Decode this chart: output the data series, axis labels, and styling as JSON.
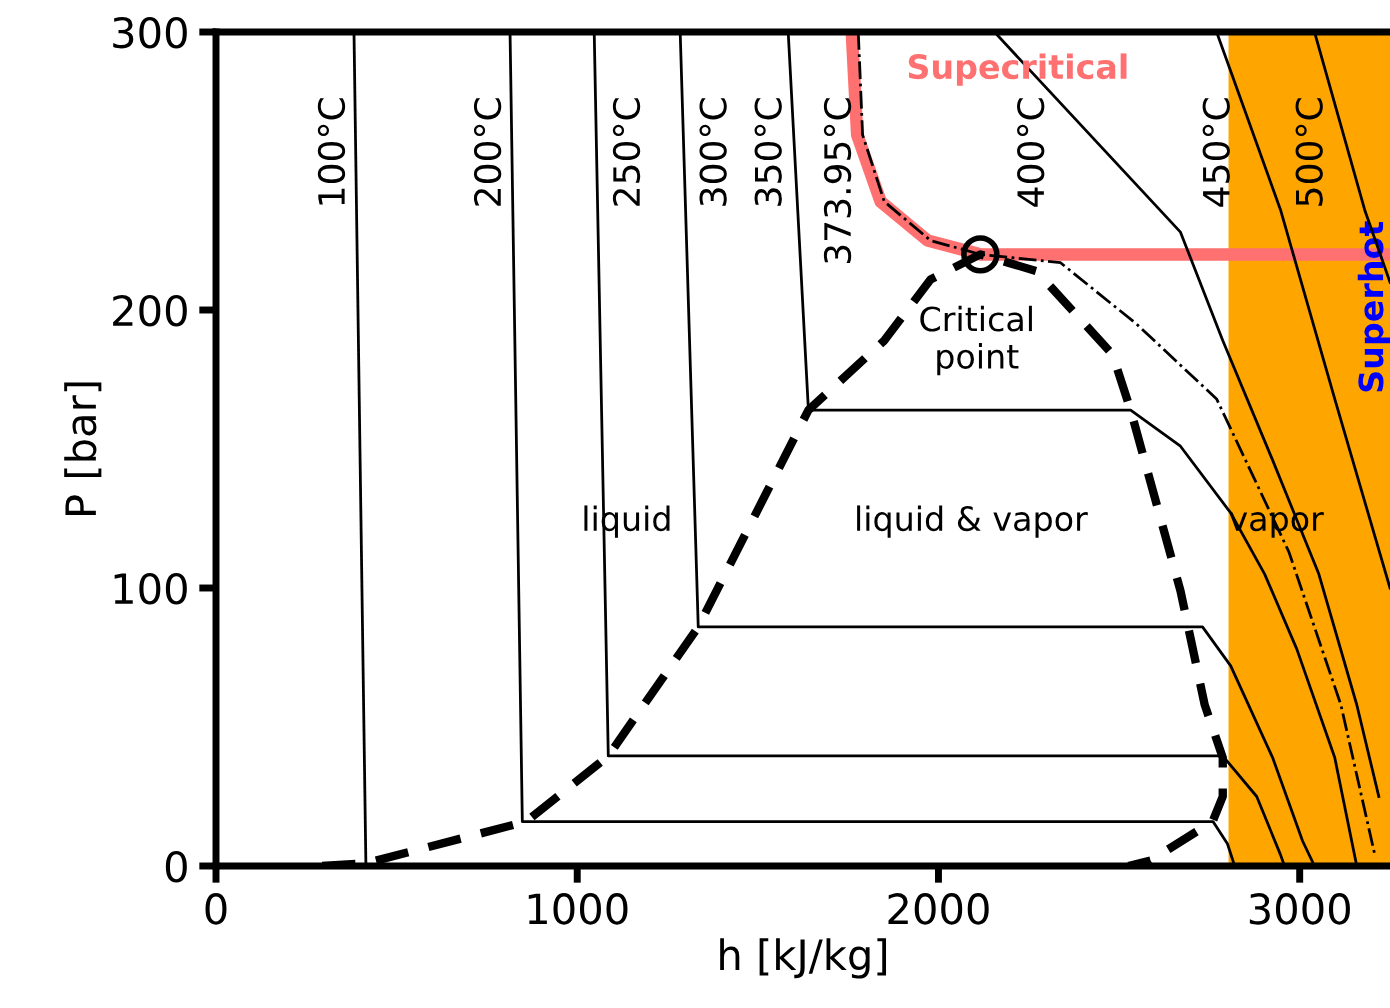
{
  "chart_data": {
    "type": "line",
    "xlabel": "h [kJ/kg]",
    "ylabel": "P [bar]",
    "xlim": [
      0,
      3250
    ],
    "ylim": [
      0,
      300
    ],
    "xticks": [
      0,
      1000,
      2000,
      3000
    ],
    "yticks": [
      0,
      100,
      200,
      300
    ],
    "grid": false,
    "legend": false,
    "series": [
      {
        "name": "100°C",
        "color": "#000000",
        "line_style": "solid",
        "x": [
          382,
          415
        ],
        "values": [
          300,
          0
        ]
      },
      {
        "name": "200°C",
        "color": "#000000",
        "line_style": "solid",
        "x": [
          814,
          848,
          2760,
          2800,
          2820
        ],
        "values": [
          300,
          16,
          16,
          8,
          0
        ]
      },
      {
        "name": "250°C",
        "color": "#000000",
        "line_style": "solid",
        "x": [
          1047,
          1086,
          2787,
          2881,
          2947,
          2958
        ],
        "values": [
          300,
          39.6,
          39.6,
          25,
          4,
          0
        ]
      },
      {
        "name": "300°C",
        "color": "#000000",
        "line_style": "solid",
        "x": [
          1285,
          1335,
          2731,
          2809,
          2925,
          3008,
          3041
        ],
        "values": [
          300,
          86,
          86,
          72,
          39,
          9,
          0
        ]
      },
      {
        "name": "350°C",
        "color": "#000000",
        "line_style": "solid",
        "x": [
          1584,
          1640,
          2532,
          2670,
          2809,
          2903,
          2992,
          3097,
          3158
        ],
        "values": [
          300,
          164,
          164,
          151,
          127,
          105,
          78,
          39,
          0
        ]
      },
      {
        "name": "400°C",
        "color": "#000000",
        "line_style": "solid",
        "x": [
          2155,
          2670,
          2787,
          2925,
          3053,
          3158,
          3219
        ],
        "values": [
          300,
          228,
          189,
          146,
          105,
          58,
          25
        ]
      },
      {
        "name": "450°C",
        "color": "#000000",
        "line_style": "solid",
        "x": [
          2770,
          2947,
          3097,
          3250
        ],
        "values": [
          300,
          236,
          168,
          100
        ]
      },
      {
        "name": "500°C",
        "color": "#000000",
        "line_style": "solid",
        "x": [
          3041,
          3180,
          3250
        ],
        "values": [
          300,
          236,
          210
        ]
      },
      {
        "color": "#ff7070",
        "line_style": "solid",
        "x": [
          1760,
          1775,
          1840,
          1970,
          2116,
          3250
        ],
        "values": [
          300,
          263,
          239,
          225,
          220,
          220
        ]
      },
      {
        "name": "373.95°C",
        "color": "#000000",
        "line_style": "dashdot",
        "x": [
          1778,
          1790,
          1850,
          1978,
          2116,
          2338,
          2548,
          2770,
          2970,
          3114,
          3208
        ],
        "values": [
          300,
          263,
          239,
          225,
          220,
          217,
          195,
          168,
          113,
          58,
          4
        ]
      },
      {
        "color": "#000000",
        "line_style": "dashed",
        "x": [
          294,
          415,
          859,
          1086,
          1335,
          1640,
          1850,
          1978,
          2116,
          2271,
          2482,
          2532,
          2670,
          2737,
          2787,
          2787,
          2759,
          2587,
          2526
        ],
        "values": [
          0,
          1,
          16,
          39.6,
          86,
          164,
          189,
          211,
          220,
          214,
          184,
          164,
          99,
          58,
          39,
          25,
          16,
          2,
          0
        ]
      },
      {
        "type": "scatter",
        "marker": "circle",
        "color": "#000000",
        "x": [
          2116
        ],
        "values": [
          220
        ]
      }
    ],
    "bands": [
      {
        "axis": "x",
        "from": 2803,
        "to": 3250,
        "label": "Superhot",
        "color": "#ffa500"
      }
    ],
    "annotations": [
      "Supecritical",
      "Critical\npoint",
      "liquid",
      "liquid & vapor",
      "vapor"
    ]
  }
}
